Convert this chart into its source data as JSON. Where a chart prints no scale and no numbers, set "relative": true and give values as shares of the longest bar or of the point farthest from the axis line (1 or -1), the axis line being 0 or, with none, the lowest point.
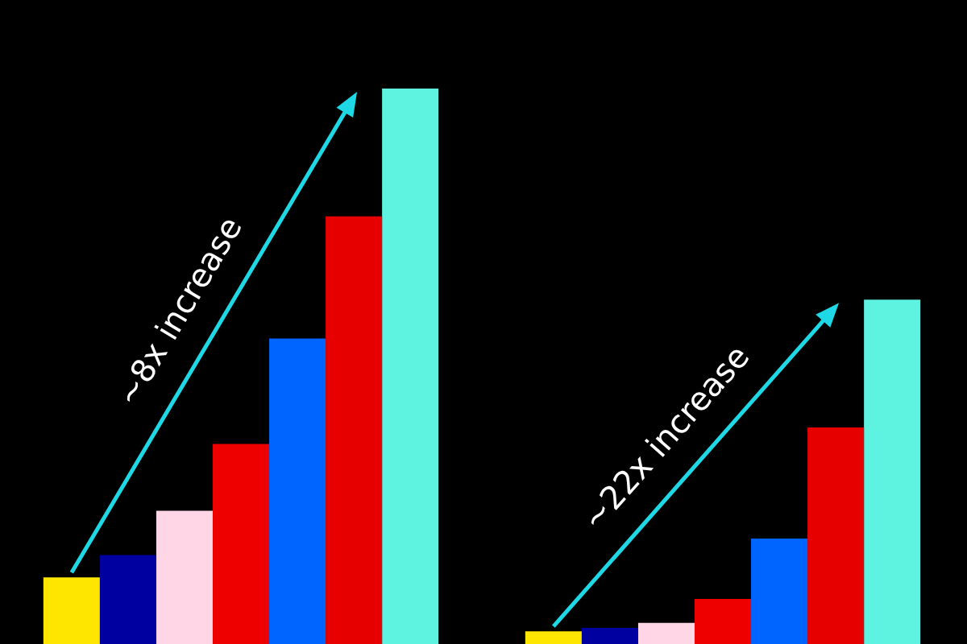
{
  "chart_data": {
    "type": "bar",
    "relative": true,
    "categories": [
      null,
      null
    ],
    "series": [
      {
        "color": "#ffe600",
        "values": [
          0.12,
          0.023
        ]
      },
      {
        "color": "#0000a0",
        "values": [
          0.16,
          0.029
        ]
      },
      {
        "color": "#ffd6e6",
        "values": [
          0.24,
          0.038
        ]
      },
      {
        "color": "#ee0000",
        "values": [
          0.36,
          0.081
        ]
      },
      {
        "color": "#0064ff",
        "values": [
          0.55,
          0.19
        ]
      },
      {
        "color": "#e60000",
        "values": [
          0.77,
          0.39
        ]
      },
      {
        "color": "#5ef2e0",
        "values": [
          1,
          0.62
        ]
      }
    ],
    "annotations": [
      "~8x increase",
      "~22x increase"
    ]
  }
}
